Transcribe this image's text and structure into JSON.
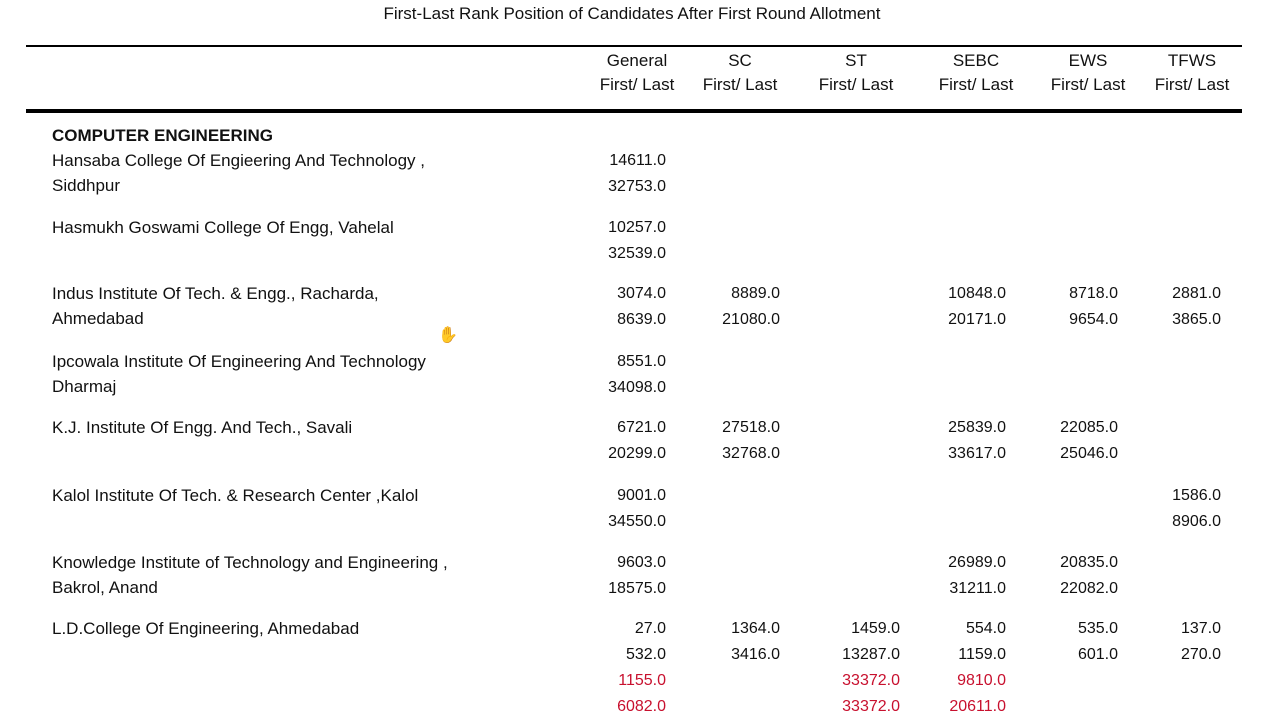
{
  "title": "First-Last Rank Position of Candidates After First Round Allotment",
  "columns": [
    {
      "name": "General",
      "sub": "First/ Last"
    },
    {
      "name": "SC",
      "sub": "First/ Last"
    },
    {
      "name": "ST",
      "sub": "First/ Last"
    },
    {
      "name": "SEBC",
      "sub": "First/ Last"
    },
    {
      "name": "EWS",
      "sub": "First/ Last"
    },
    {
      "name": "TFWS",
      "sub": "First/ Last"
    }
  ],
  "section": "COMPUTER ENGINEERING",
  "institutes": [
    {
      "name_lines": [
        "Hansaba College Of Engieering And Technology ,",
        "Siddhpur"
      ],
      "values": [
        {
          "col": 0,
          "text": "14611.0"
        },
        {
          "col": 0,
          "text": "32753.0"
        }
      ]
    },
    {
      "name_lines": [
        "Hasmukh Goswami College Of Engg, Vahelal"
      ],
      "values": [
        {
          "col": 0,
          "text": "10257.0"
        },
        {
          "col": 0,
          "text": "32539.0"
        }
      ]
    },
    {
      "name_lines": [
        "Indus Institute Of Tech. & Engg., Racharda,",
        "Ahmedabad"
      ],
      "values": [
        {
          "col": 0,
          "text": "3074.0"
        },
        {
          "col": 0,
          "text": "8639.0"
        },
        {
          "col": 1,
          "text": "8889.0"
        },
        {
          "col": 1,
          "text": "21080.0"
        },
        {
          "col": 3,
          "text": "10848.0"
        },
        {
          "col": 3,
          "text": "20171.0"
        },
        {
          "col": 4,
          "text": "8718.0"
        },
        {
          "col": 4,
          "text": "9654.0"
        },
        {
          "col": 5,
          "text": "2881.0"
        },
        {
          "col": 5,
          "text": "3865.0"
        }
      ]
    },
    {
      "name_lines": [
        "Ipcowala Institute Of Engineering And Technology",
        "Dharmaj"
      ],
      "values": [
        {
          "col": 0,
          "text": "8551.0"
        },
        {
          "col": 0,
          "text": "34098.0"
        }
      ]
    },
    {
      "name_lines": [
        "K.J. Institute Of Engg. And Tech., Savali"
      ],
      "values": [
        {
          "col": 0,
          "text": "6721.0"
        },
        {
          "col": 0,
          "text": "20299.0"
        },
        {
          "col": 1,
          "text": "27518.0"
        },
        {
          "col": 1,
          "text": "32768.0"
        },
        {
          "col": 3,
          "text": "25839.0"
        },
        {
          "col": 3,
          "text": "33617.0"
        },
        {
          "col": 4,
          "text": "22085.0"
        },
        {
          "col": 4,
          "text": "25046.0"
        }
      ]
    },
    {
      "name_lines": [
        "Kalol Institute Of Tech. & Research Center ,Kalol"
      ],
      "values": [
        {
          "col": 0,
          "text": "9001.0"
        },
        {
          "col": 0,
          "text": "34550.0"
        },
        {
          "col": 5,
          "text": "1586.0"
        },
        {
          "col": 5,
          "text": "8906.0"
        }
      ]
    },
    {
      "name_lines": [
        "Knowledge Institute of Technology and Engineering ,",
        "Bakrol, Anand"
      ],
      "values": [
        {
          "col": 0,
          "text": "9603.0"
        },
        {
          "col": 0,
          "text": "18575.0"
        },
        {
          "col": 3,
          "text": "26989.0"
        },
        {
          "col": 3,
          "text": "31211.0"
        },
        {
          "col": 4,
          "text": "20835.0"
        },
        {
          "col": 4,
          "text": "22082.0"
        }
      ]
    },
    {
      "name_lines": [
        "L.D.College Of Engineering, Ahmedabad"
      ],
      "values": [
        {
          "col": 0,
          "text": "27.0"
        },
        {
          "col": 0,
          "text": "532.0"
        },
        {
          "col": 0,
          "text": "1155.0",
          "red": true
        },
        {
          "col": 0,
          "text": "6082.0",
          "red": true
        },
        {
          "col": 1,
          "text": "1364.0"
        },
        {
          "col": 1,
          "text": "3416.0"
        },
        {
          "col": 2,
          "text": "1459.0"
        },
        {
          "col": 2,
          "text": "13287.0"
        },
        {
          "col": 2,
          "text": "33372.0",
          "red": true
        },
        {
          "col": 2,
          "text": "33372.0",
          "red": true
        },
        {
          "col": 3,
          "text": "554.0"
        },
        {
          "col": 3,
          "text": "1159.0"
        },
        {
          "col": 3,
          "text": "9810.0",
          "red": true
        },
        {
          "col": 3,
          "text": "20611.0",
          "red": true
        },
        {
          "col": 4,
          "text": "535.0"
        },
        {
          "col": 4,
          "text": "601.0"
        },
        {
          "col": 5,
          "text": "137.0"
        },
        {
          "col": 5,
          "text": "270.0"
        }
      ]
    }
  ],
  "cursor_icon": "hand-pointer-icon"
}
